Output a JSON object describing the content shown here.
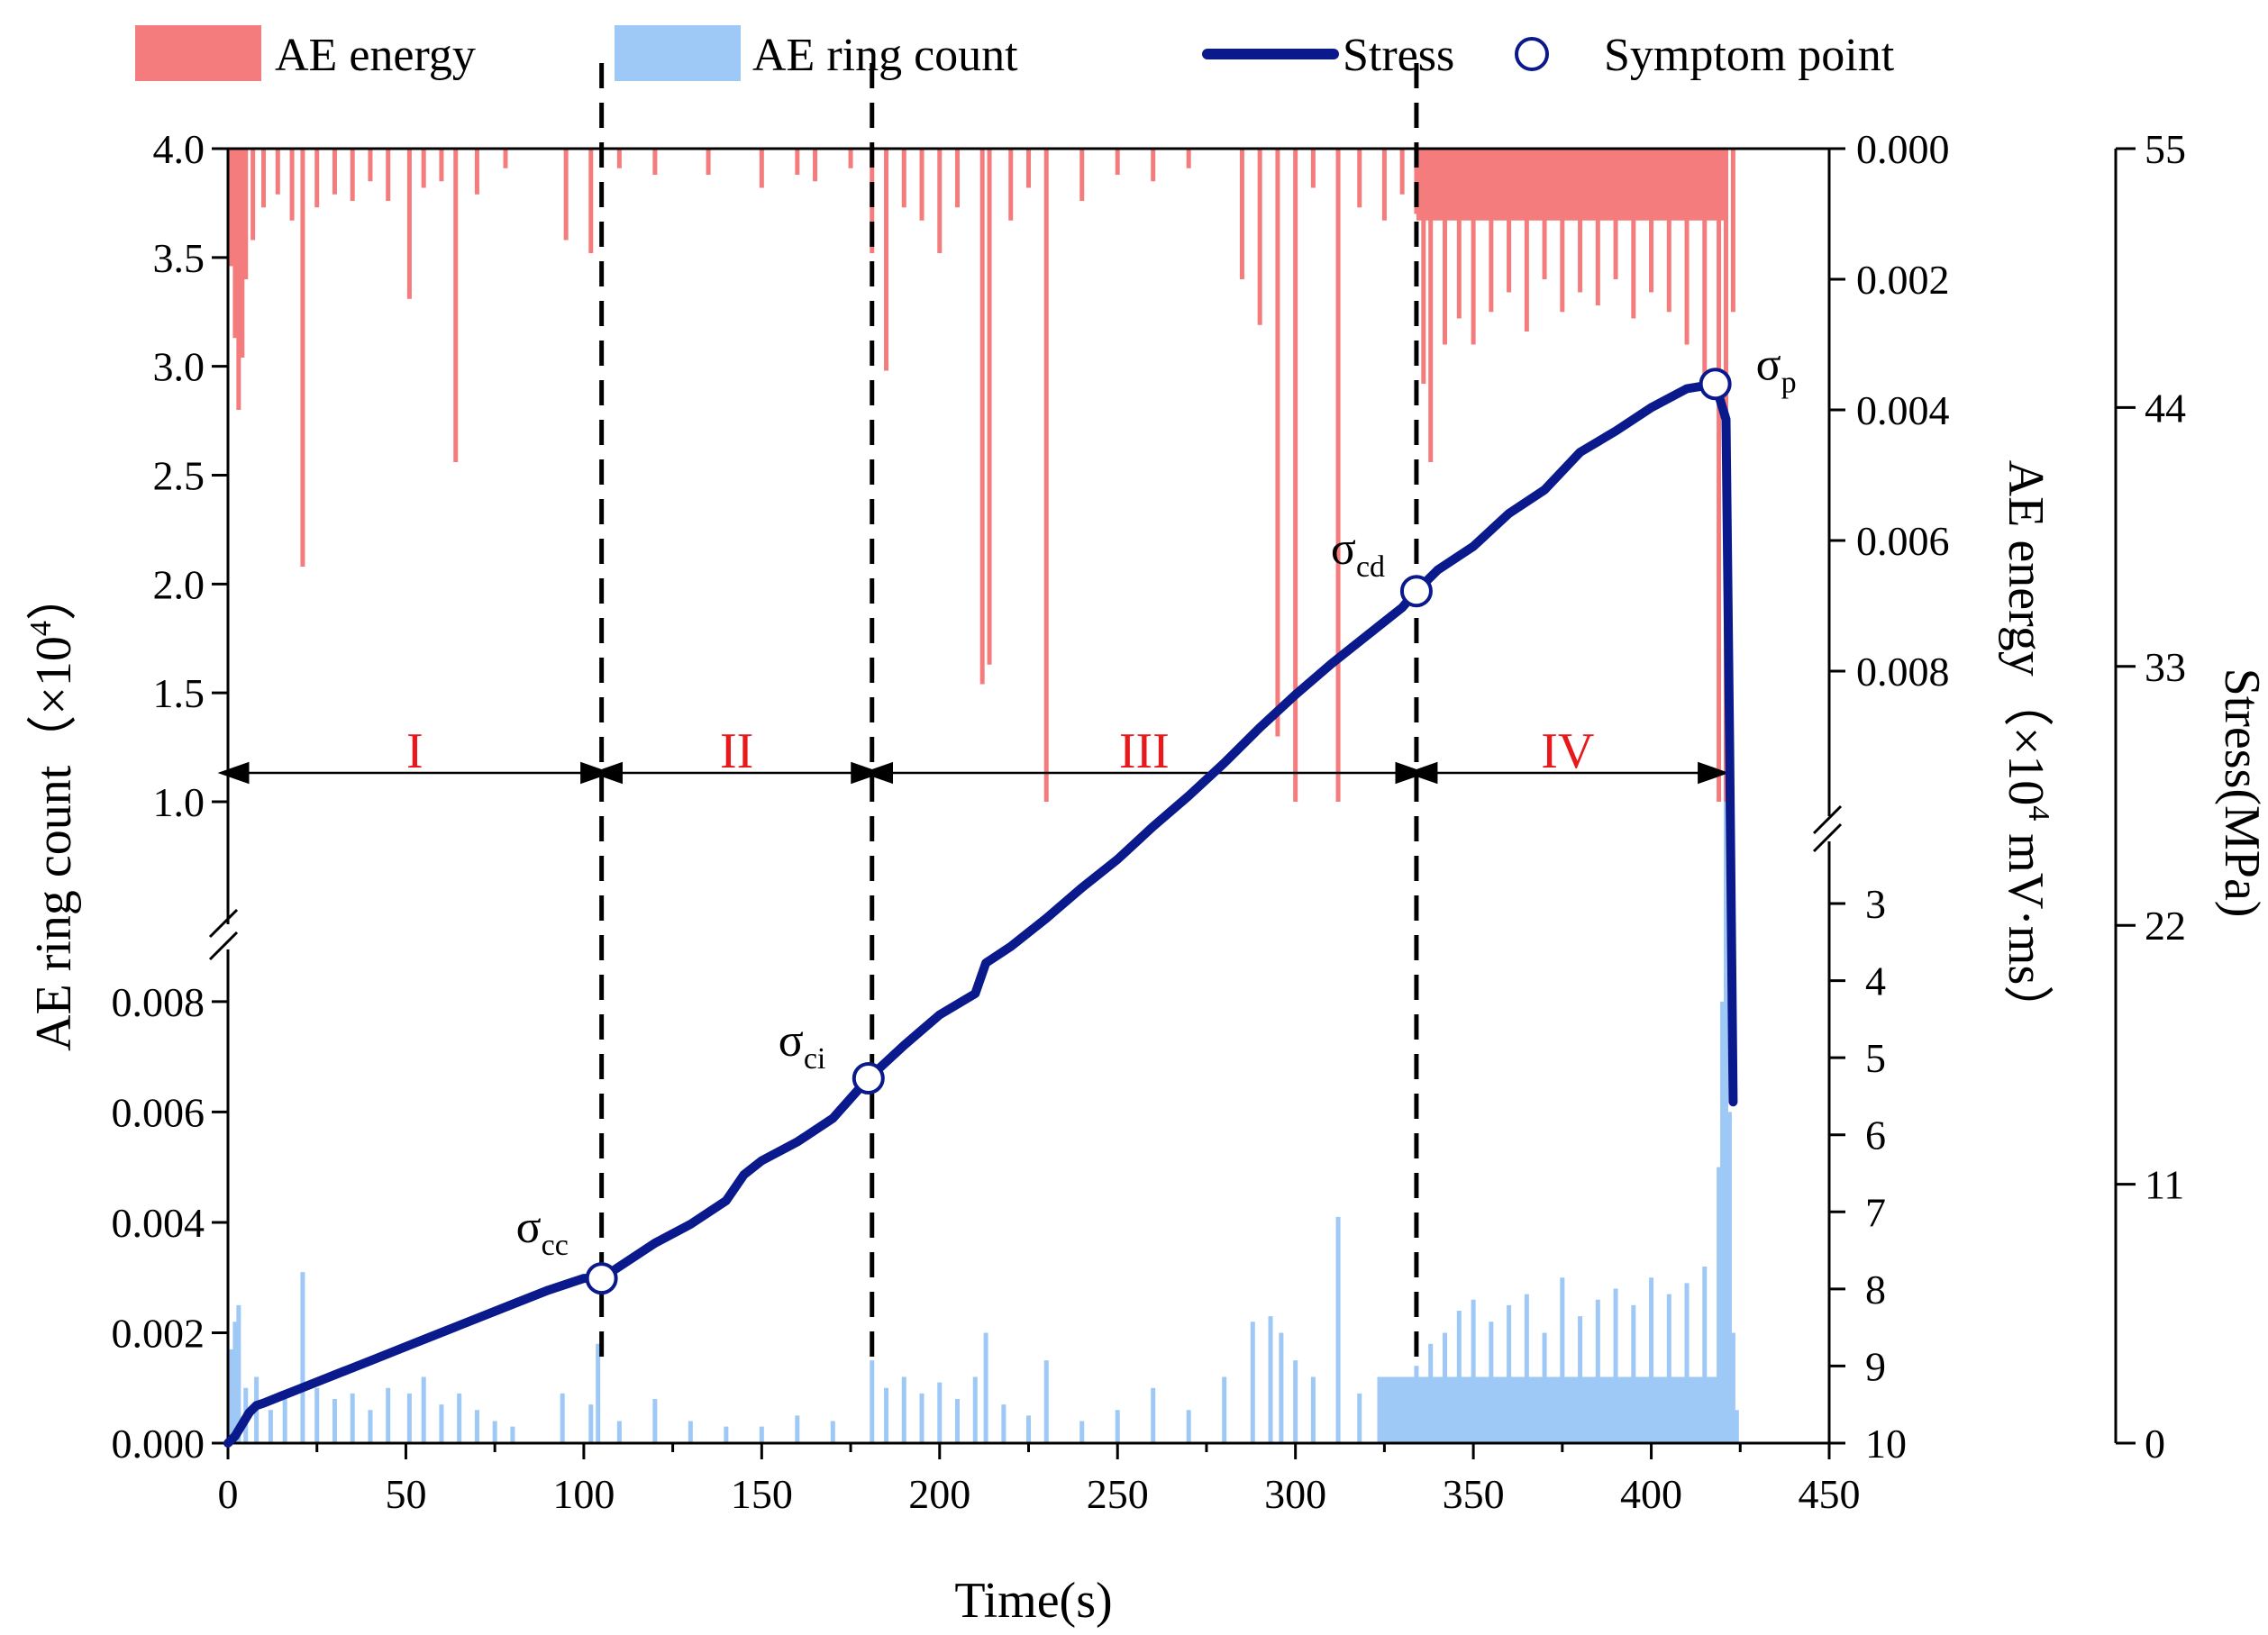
{
  "chart_data": {
    "type": "bar+line",
    "xlabel": "Time(s)",
    "x_ticks": [
      0,
      50,
      100,
      150,
      200,
      250,
      300,
      350,
      400,
      450
    ],
    "xlim": [
      0,
      450
    ],
    "left_axis": {
      "label": "AE ring count（×10",
      "label_sup": "4",
      "label_end": "）",
      "upper_ticks": [
        "1.0",
        "1.5",
        "2.0",
        "2.5",
        "3.0",
        "3.5",
        "4.0"
      ],
      "upper_range": [
        1.0,
        4.0
      ],
      "lower_ticks": [
        "0.000",
        "0.002",
        "0.004",
        "0.006",
        "0.008"
      ],
      "lower_range": [
        0.0,
        0.01
      ]
    },
    "mid_axis": {
      "label": "AE energy（×10",
      "label_sup": "4",
      "label_end": " mV·ms）",
      "upper_ticks": [
        "0.000",
        "0.002",
        "0.004",
        "0.006",
        "0.008"
      ],
      "upper_range": [
        0.0,
        0.01
      ],
      "lower_ticks": [
        "3",
        "4",
        "5",
        "6",
        "7",
        "8",
        "9",
        "10"
      ],
      "lower_range": [
        2,
        10
      ]
    },
    "right_axis": {
      "label": "Stress(MPa)",
      "ticks": [
        "0",
        "11",
        "22",
        "33",
        "44",
        "55"
      ],
      "range": [
        0,
        55
      ]
    },
    "legend": {
      "ae_energy": "AE energy",
      "ae_ring": "AE ring count",
      "stress": "Stress",
      "symptom": "Symptom point",
      "placement": "top"
    },
    "colors": {
      "ae_energy": "#f47c7c",
      "ae_ring": "#9ec8f5",
      "stress": "#0a1a8c",
      "stage_label": "#e8191c"
    },
    "stages": [
      {
        "label": "I",
        "start": 0,
        "end": 105
      },
      {
        "label": "II",
        "start": 105,
        "end": 181
      },
      {
        "label": "III",
        "start": 181,
        "end": 334
      },
      {
        "label": "IV",
        "start": 334,
        "end": 419
      }
    ],
    "stage_boundaries": [
      105,
      181,
      334
    ],
    "symptom_points": [
      {
        "label": "σ",
        "sub": "cc",
        "x": 105,
        "stress": 7.0
      },
      {
        "label": "σ",
        "sub": "ci",
        "x": 180,
        "stress": 15.5
      },
      {
        "label": "σ",
        "sub": "cd",
        "x": 334,
        "stress": 36.2
      },
      {
        "label": "σ",
        "sub": "p",
        "x": 418,
        "stress": 45.0
      }
    ],
    "stress_series": {
      "x": [
        0,
        2,
        4,
        6,
        8,
        10,
        15,
        20,
        30,
        40,
        50,
        60,
        70,
        80,
        90,
        100,
        105,
        110,
        120,
        130,
        140,
        145,
        150,
        160,
        170,
        180,
        190,
        200,
        210,
        213,
        220,
        230,
        240,
        250,
        260,
        270,
        280,
        290,
        300,
        310,
        320,
        330,
        334,
        340,
        350,
        360,
        370,
        375,
        380,
        390,
        400,
        410,
        418,
        421,
        422,
        423
      ],
      "y": [
        0,
        0.3,
        0.8,
        1.3,
        1.6,
        1.7,
        2.0,
        2.3,
        2.9,
        3.5,
        4.1,
        4.7,
        5.3,
        5.9,
        6.5,
        7.0,
        7.0,
        7.5,
        8.5,
        9.3,
        10.3,
        11.4,
        12.0,
        12.8,
        13.8,
        15.5,
        16.9,
        18.2,
        19.1,
        20.4,
        21.1,
        22.3,
        23.6,
        24.8,
        26.2,
        27.5,
        28.9,
        30.4,
        31.8,
        33.1,
        34.3,
        35.5,
        36.2,
        37.1,
        38.1,
        39.5,
        40.5,
        41.3,
        42.1,
        43.0,
        44.0,
        44.8,
        45.0,
        43.5,
        30.0,
        14.5
      ]
    },
    "ae_energy_series": {
      "note_units": "×10^4 mV·ms",
      "x": [
        1,
        2,
        3,
        4,
        5,
        7,
        10,
        14,
        18,
        21,
        25,
        30,
        35,
        40,
        45,
        51,
        55,
        60,
        64,
        70,
        78,
        95,
        102,
        110,
        120,
        135,
        150,
        160,
        165,
        175,
        181,
        185,
        190,
        195,
        200,
        205,
        212,
        214,
        220,
        225,
        230,
        240,
        250,
        260,
        270,
        285,
        290,
        295,
        300,
        305,
        312,
        318,
        325,
        330,
        334,
        336,
        338,
        342,
        346,
        350,
        355,
        360,
        365,
        370,
        375,
        380,
        385,
        390,
        395,
        400,
        405,
        410,
        415,
        419,
        421,
        423
      ],
      "y": [
        0.0018,
        0.0029,
        0.004,
        0.0032,
        0.002,
        0.0014,
        0.0009,
        0.0007,
        0.0011,
        0.0064,
        0.0009,
        0.0007,
        0.0008,
        0.0005,
        0.0008,
        0.0023,
        0.0006,
        0.0005,
        0.0048,
        0.0007,
        0.0003,
        0.0014,
        0.0016,
        0.0003,
        0.0004,
        0.0004,
        0.0006,
        0.0004,
        0.0005,
        0.0003,
        0.0016,
        0.0034,
        0.0009,
        0.0011,
        0.0016,
        0.0009,
        0.0082,
        0.0079,
        0.0011,
        0.0006,
        0.01,
        0.0008,
        0.0004,
        0.0005,
        0.0003,
        0.002,
        0.0027,
        0.009,
        0.01,
        0.0006,
        0.01,
        0.0009,
        0.0011,
        0.0007,
        0.001,
        0.0036,
        0.0048,
        0.003,
        0.0026,
        0.003,
        0.0025,
        0.0022,
        0.0028,
        0.002,
        0.0025,
        0.0022,
        0.0024,
        0.002,
        0.0026,
        0.0022,
        0.0025,
        0.003,
        0.0036,
        0.01,
        0.01,
        0.0025
      ]
    },
    "ae_ring_series": {
      "note_units": "×10^4",
      "x": [
        1,
        2,
        3,
        5,
        8,
        12,
        16,
        21,
        25,
        30,
        35,
        40,
        45,
        51,
        55,
        60,
        65,
        70,
        75,
        80,
        94,
        102,
        104,
        110,
        120,
        130,
        140,
        150,
        160,
        170,
        181,
        185,
        190,
        195,
        200,
        205,
        210,
        213,
        218,
        225,
        230,
        240,
        250,
        260,
        270,
        280,
        288,
        293,
        296,
        300,
        305,
        312,
        318,
        325,
        330,
        334,
        338,
        342,
        346,
        350,
        355,
        360,
        365,
        370,
        375,
        380,
        385,
        390,
        395,
        400,
        405,
        410,
        415,
        419,
        420,
        421,
        422,
        423,
        424
      ],
      "y": [
        0.0017,
        0.0022,
        0.0025,
        0.001,
        0.0012,
        0.0006,
        0.0008,
        0.0031,
        0.001,
        0.0008,
        0.0009,
        0.0006,
        0.001,
        0.0009,
        0.0012,
        0.0007,
        0.0009,
        0.0006,
        0.0004,
        0.0003,
        0.0009,
        0.0007,
        0.0018,
        0.0004,
        0.0008,
        0.0004,
        0.0003,
        0.0003,
        0.0005,
        0.0004,
        0.0015,
        0.001,
        0.0012,
        0.0009,
        0.0011,
        0.0008,
        0.0012,
        0.002,
        0.0007,
        0.0005,
        0.0015,
        0.0004,
        0.0006,
        0.001,
        0.0006,
        0.0012,
        0.0022,
        0.0023,
        0.002,
        0.0015,
        0.0012,
        0.0041,
        0.0009,
        0.0012,
        0.001,
        0.0014,
        0.0018,
        0.002,
        0.0024,
        0.0026,
        0.0022,
        0.0025,
        0.0027,
        0.002,
        0.003,
        0.0023,
        0.0026,
        0.0028,
        0.0025,
        0.003,
        0.0027,
        0.0029,
        0.0032,
        0.005,
        0.008,
        0.01,
        0.006,
        0.002,
        0.0006
      ]
    }
  }
}
